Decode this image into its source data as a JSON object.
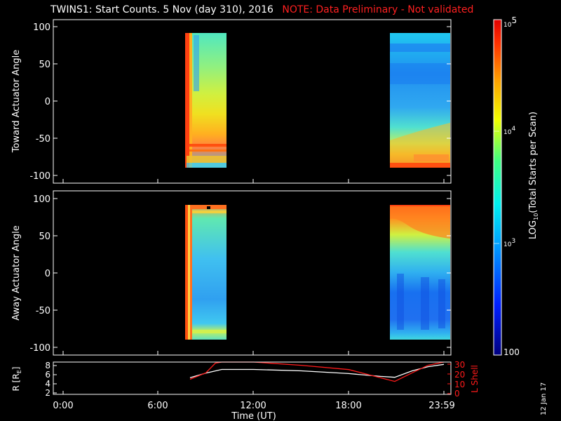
{
  "title": {
    "main": "TWINS1: Start Counts.  5 Nov (day 310), 2016",
    "note": "NOTE: Data Preliminary - Not validated"
  },
  "datestamp": "12 Jan 17",
  "colors": {
    "background": "#000000",
    "axes": "#ffffff",
    "note": "#ff2020",
    "lshell": "#ff1a1a",
    "radius": "#ffffff"
  },
  "chart_data": [
    {
      "type": "heatmap",
      "panel": "toward",
      "ylabel": "Toward Actuator Angle",
      "ylim": [
        -110,
        110
      ],
      "yticks": [
        100,
        50,
        0,
        -50,
        -100
      ],
      "xlim_hours": [
        0,
        24
      ],
      "colormap": "rainbow (blue-cyan-green-yellow-red)",
      "data_blocks": [
        {
          "start": "08:00",
          "end": "10:05",
          "angle_range": [
            -90,
            90
          ],
          "pattern": "red/orange stripe at start; cyan-green at top, yellow-orange near bottom, striped red-orange band below -50"
        },
        {
          "start": "20:50",
          "end": "23:59",
          "angle_range": [
            -90,
            90
          ],
          "pattern": "cyan-blue through most of range, green-yellow rising toward bottom, red/orange band near -85"
        }
      ]
    },
    {
      "type": "heatmap",
      "panel": "away",
      "ylabel": "Away Actuator Angle",
      "ylim": [
        -110,
        110
      ],
      "yticks": [
        100,
        50,
        0,
        -50,
        -100
      ],
      "xlim_hours": [
        0,
        24
      ],
      "data_blocks": [
        {
          "start": "08:00",
          "end": "10:05",
          "angle_range": [
            -90,
            90
          ],
          "pattern": "red/orange stripes near start and top, cyan-blue interior, green-yellow at bottom edge"
        },
        {
          "start": "20:50",
          "end": "23:59",
          "angle_range": [
            -90,
            90
          ],
          "pattern": "orange/red band near top, cyan-green middle, deep blue below 0, cyan at bottom"
        }
      ]
    },
    {
      "type": "colorbar",
      "label": "LOG10(Total Starts per Scan)",
      "scale": "log",
      "range": [
        100,
        100000
      ],
      "tick_labels": [
        "10^5",
        "10^4",
        "10^3",
        "100"
      ]
    },
    {
      "type": "line",
      "panel": "orbit",
      "xlabel": "Time (UT)",
      "xticks": [
        "0:00",
        "6:00",
        "12:00",
        "18:00",
        "23:59"
      ],
      "x_hours": [
        0,
        6,
        12,
        18,
        24
      ],
      "left_axis": {
        "label": "R [RE]",
        "ylim": [
          1.5,
          8.5
        ],
        "ticks": [
          2,
          4,
          6,
          8
        ]
      },
      "right_axis": {
        "label": "L Shell",
        "ylim": [
          0,
          30
        ],
        "ticks": [
          0,
          10,
          20,
          30
        ]
      },
      "series": [
        {
          "name": "R [RE]",
          "axis": "left",
          "x": [
            8.0,
            9.0,
            10.0,
            12.0,
            15.0,
            18.0,
            20.0,
            20.9,
            22.0,
            23.0,
            24.0
          ],
          "y": [
            5.1,
            6.1,
            6.9,
            6.9,
            6.6,
            6.0,
            5.4,
            5.2,
            6.6,
            7.5,
            8.0
          ]
        },
        {
          "name": "L Shell",
          "axis": "right",
          "x": [
            8.0,
            9.0,
            9.6,
            10.0,
            12.0,
            15.0,
            18.0,
            20.9,
            22.0,
            23.0,
            24.0
          ],
          "y": [
            14,
            20,
            29,
            31,
            31,
            27,
            23,
            12,
            20,
            27,
            31
          ]
        }
      ]
    }
  ],
  "labels": {
    "toward_ylabel": "Toward Actuator Angle",
    "away_ylabel": "Away Actuator Angle",
    "cb_label_prefix": "LOG",
    "cb_label_sub": "10",
    "cb_label_suffix": "(Total Starts per Scan)",
    "cb_tick_top_base": "10",
    "cb_tick_top_exp": "5",
    "cb_tick_mid1_base": "10",
    "cb_tick_mid1_exp": "4",
    "cb_tick_mid2_base": "10",
    "cb_tick_mid2_exp": "3",
    "cb_tick_bottom": "100",
    "r_label": "R [R",
    "r_label_sub": "E",
    "r_label_close": "]",
    "lshell_label": "L Shell",
    "time_label": "Time (UT)",
    "ticks_angle": [
      "100",
      "50",
      "0",
      "-50",
      "-100"
    ],
    "ticks_time": [
      "0:00",
      "6:00",
      "12:00",
      "18:00",
      "23:59"
    ],
    "ticks_r": [
      "8",
      "6",
      "4",
      "2"
    ],
    "ticks_l": [
      "30",
      "20",
      "10",
      "0"
    ]
  }
}
